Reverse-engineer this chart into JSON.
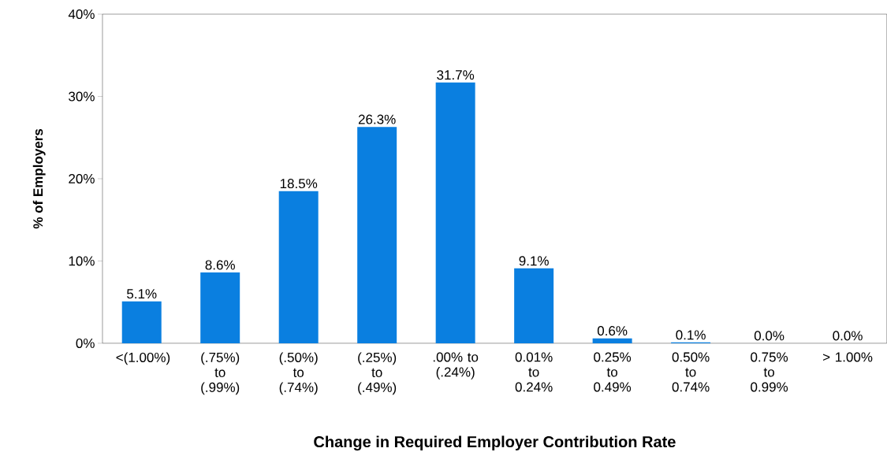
{
  "chart_data": {
    "type": "bar",
    "xlabel": "Change in Required Employer Contribution Rate",
    "ylabel": "% of Employers",
    "categories": [
      "<(1.00%)",
      "(.75%) to (.99%)",
      "(.50%) to (.74%)",
      "(.25%) to (.49%)",
      ".00% to (.24%)",
      "0.01% to 0.24%",
      "0.25% to 0.49%",
      "0.50% to 0.74%",
      "0.75% to 0.99%",
      "> 1.00%"
    ],
    "values": [
      5.1,
      8.6,
      18.5,
      26.3,
      31.7,
      9.1,
      0.6,
      0.1,
      0.0,
      0.0
    ],
    "value_labels": [
      "5.1%",
      "8.6%",
      "18.5%",
      "26.3%",
      "31.7%",
      "9.1%",
      "0.6%",
      "0.1%",
      "0.0%",
      "0.0%"
    ],
    "color": "#0a7fe0",
    "ylim": [
      0,
      40
    ],
    "yticks": [
      {
        "value": 0,
        "label": "0%"
      },
      {
        "value": 10,
        "label": "10%"
      },
      {
        "value": 20,
        "label": "20%"
      },
      {
        "value": 30,
        "label": "30%"
      },
      {
        "value": 40,
        "label": "40%"
      }
    ],
    "grid": false
  }
}
